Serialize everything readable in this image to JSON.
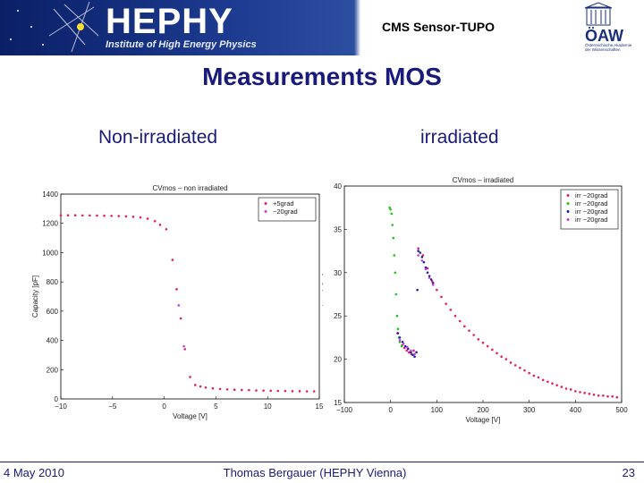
{
  "header": {
    "logo_text": "HEPHY",
    "logo_subtitle": "Institute of High Energy Physics",
    "title": "CMS Sensor-TUPO",
    "oaw_text": "ÖAW",
    "oaw_subtitle": "Österreichische Akademie der Wissenschaften"
  },
  "slide": {
    "title": "Measurements MOS",
    "left_label": "Non-irradiated",
    "right_label": "irradiated"
  },
  "footer": {
    "date": "4 May 2010",
    "author": "Thomas Bergauer (HEPHY Vienna)",
    "page": "23"
  },
  "colors": {
    "header_dark": "#0a1f66",
    "text": "#1a1a7a",
    "series_red": "#e0206a",
    "series_magenta": "#c040e0",
    "series_green": "#20c020",
    "series_blue": "#2020a0"
  },
  "chart_data": [
    {
      "type": "scatter",
      "title": "CVmos – non irradiated",
      "xlabel": "Voltage [V]",
      "ylabel": "Capacity [pF]",
      "xlim": [
        -10,
        15
      ],
      "ylim": [
        0,
        1400
      ],
      "xticks": [
        "−10",
        "−5",
        "0",
        "5",
        "10",
        "15"
      ],
      "yticks": [
        "0",
        "200",
        "400",
        "600",
        "800",
        "1000",
        "1200",
        "1400"
      ],
      "legend_position": "top-right",
      "series": [
        {
          "name": "+5grad",
          "color": "#e0206a",
          "points": [
            [
              -10,
              1255
            ],
            [
              -9.3,
              1255
            ],
            [
              -8.6,
              1255
            ],
            [
              -7.9,
              1254
            ],
            [
              -7.2,
              1254
            ],
            [
              -6.5,
              1253
            ],
            [
              -5.8,
              1252
            ],
            [
              -5.1,
              1251
            ],
            [
              -4.4,
              1250
            ],
            [
              -3.7,
              1248
            ],
            [
              -3,
              1245
            ],
            [
              -2.3,
              1240
            ],
            [
              -1.6,
              1232
            ],
            [
              -0.9,
              1215
            ],
            [
              -0.4,
              1190
            ],
            [
              0.2,
              1160
            ],
            [
              0.8,
              950
            ],
            [
              1.2,
              750
            ],
            [
              1.6,
              550
            ],
            [
              2,
              340
            ],
            [
              2.5,
              150
            ],
            [
              3,
              95
            ],
            [
              3.5,
              85
            ],
            [
              4,
              78
            ],
            [
              4.7,
              72
            ],
            [
              5.4,
              68
            ],
            [
              6.1,
              65
            ],
            [
              6.8,
              63
            ],
            [
              7.5,
              61
            ],
            [
              8.2,
              60
            ],
            [
              8.9,
              58
            ],
            [
              9.6,
              57
            ],
            [
              10.3,
              56
            ],
            [
              11,
              55
            ],
            [
              11.7,
              54
            ],
            [
              12.4,
              53
            ],
            [
              13.1,
              53
            ],
            [
              13.8,
              52
            ],
            [
              14.5,
              52
            ]
          ]
        },
        {
          "name": "−20grad",
          "color": "#c040e0",
          "points": [
            [
              1.4,
              640
            ],
            [
              1.9,
              360
            ]
          ]
        }
      ]
    },
    {
      "type": "scatter",
      "title": "CVmos – irradiated",
      "xlabel": "Voltage [V]",
      "ylabel": "Capacity [pF]",
      "xlim": [
        -100,
        500
      ],
      "ylim": [
        15,
        40
      ],
      "xticks": [
        "−100",
        "0",
        "100",
        "200",
        "300",
        "400",
        "500"
      ],
      "yticks": [
        "15",
        "20",
        "25",
        "30",
        "35",
        "40"
      ],
      "legend_position": "top-right",
      "series": [
        {
          "name": "irr −20grad",
          "color": "#e0206a",
          "points": [
            [
              15,
              23
            ],
            [
              20,
              22
            ],
            [
              25,
              21.6
            ],
            [
              30,
              21.3
            ],
            [
              35,
              21
            ],
            [
              40,
              20.8
            ],
            [
              45,
              20.6
            ],
            [
              50,
              21
            ],
            [
              60,
              32.8
            ],
            [
              70,
              32
            ],
            [
              80,
              30.5
            ],
            [
              90,
              29
            ],
            [
              100,
              28
            ],
            [
              110,
              27.2
            ],
            [
              120,
              26.4
            ],
            [
              130,
              25.7
            ],
            [
              140,
              25
            ],
            [
              150,
              24.4
            ],
            [
              160,
              23.8
            ],
            [
              170,
              23.3
            ],
            [
              180,
              22.8
            ],
            [
              190,
              22.3
            ],
            [
              200,
              21.9
            ],
            [
              210,
              21.5
            ],
            [
              220,
              21.1
            ],
            [
              230,
              20.7
            ],
            [
              240,
              20.3
            ],
            [
              250,
              20
            ],
            [
              260,
              19.6
            ],
            [
              270,
              19.3
            ],
            [
              280,
              19
            ],
            [
              290,
              18.7
            ],
            [
              300,
              18.4
            ],
            [
              310,
              18.1
            ],
            [
              320,
              17.9
            ],
            [
              330,
              17.6
            ],
            [
              340,
              17.4
            ],
            [
              350,
              17.2
            ],
            [
              360,
              17
            ],
            [
              370,
              16.8
            ],
            [
              380,
              16.6
            ],
            [
              390,
              16.5
            ],
            [
              400,
              16.3
            ],
            [
              410,
              16.2
            ],
            [
              420,
              16.1
            ],
            [
              430,
              16
            ],
            [
              440,
              15.9
            ],
            [
              450,
              15.8
            ],
            [
              460,
              15.8
            ],
            [
              470,
              15.7
            ],
            [
              480,
              15.7
            ],
            [
              490,
              15.6
            ]
          ]
        },
        {
          "name": "irr −20grad",
          "color": "#20c020",
          "points": [
            [
              -2,
              37.5
            ],
            [
              0,
              37.3
            ],
            [
              2,
              36.8
            ],
            [
              4,
              35.5
            ],
            [
              6,
              34
            ],
            [
              8,
              32
            ],
            [
              10,
              30
            ],
            [
              12,
              27.5
            ],
            [
              14,
              25
            ],
            [
              16,
              23.5
            ],
            [
              18,
              22.5
            ],
            [
              20,
              22
            ],
            [
              24,
              21.5
            ]
          ]
        },
        {
          "name": "irr −20grad",
          "color": "#2020a0",
          "points": [
            [
              16,
              23
            ],
            [
              20,
              22.5
            ],
            [
              26,
              22
            ],
            [
              32,
              21.5
            ],
            [
              38,
              21.2
            ],
            [
              44,
              20.8
            ],
            [
              48,
              20.5
            ],
            [
              52,
              20.3
            ],
            [
              56,
              20.8
            ],
            [
              58,
              28
            ],
            [
              60,
              32.5
            ],
            [
              64,
              32.3
            ],
            [
              68,
              31.8
            ],
            [
              72,
              31.2
            ],
            [
              76,
              30.6
            ],
            [
              80,
              30
            ],
            [
              84,
              29.6
            ],
            [
              88,
              29.2
            ],
            [
              92,
              28.8
            ]
          ]
        },
        {
          "name": "irr −20grad",
          "color": "#c040e0",
          "points": [
            [
              20,
              22.2
            ],
            [
              28,
              21.8
            ],
            [
              36,
              21.4
            ],
            [
              44,
              21
            ],
            [
              52,
              20.6
            ],
            [
              60,
              32
            ],
            [
              68,
              31.4
            ],
            [
              76,
              30.4
            ],
            [
              84,
              29.4
            ],
            [
              92,
              28.6
            ]
          ]
        }
      ]
    }
  ]
}
